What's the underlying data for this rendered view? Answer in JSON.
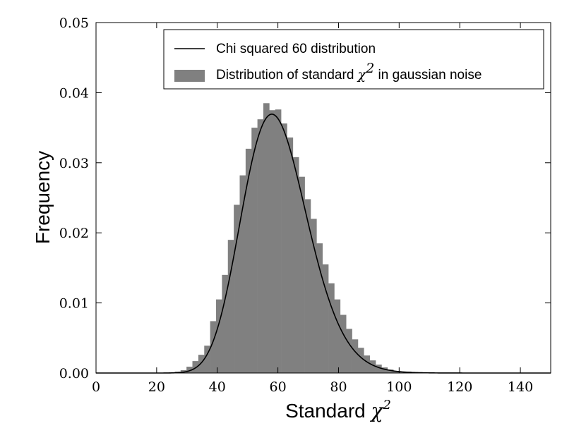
{
  "chart_data": {
    "type": "bar",
    "xlabel": "Standard",
    "xlabel_math": "χ",
    "xlabel_sup": "2",
    "ylabel": "Frequency",
    "xlim": [
      0,
      150
    ],
    "ylim": [
      0,
      0.05
    ],
    "x_ticks": [
      0,
      20,
      40,
      60,
      80,
      100,
      120,
      140
    ],
    "y_ticks": [
      0.0,
      0.01,
      0.02,
      0.03,
      0.04,
      0.05
    ],
    "x_tick_labels": [
      "0",
      "20",
      "40",
      "60",
      "80",
      "100",
      "120",
      "140"
    ],
    "y_tick_labels": [
      "0.00",
      "0.01",
      "0.02",
      "0.03",
      "0.04",
      "0.05"
    ],
    "grid": false,
    "legend_placement": "top-right",
    "series": [
      {
        "name": "Distribution of standard χ2 in gaussian noise",
        "type": "histogram",
        "color": "#808080",
        "bin_width": 1.95,
        "bins_start": [
          24.0,
          25.95,
          27.9,
          29.85,
          31.8,
          33.75,
          35.7,
          37.65,
          39.6,
          41.55,
          43.5,
          45.45,
          47.4,
          49.35,
          51.3,
          53.25,
          55.2,
          57.15,
          59.1,
          61.05,
          63.0,
          64.95,
          66.9,
          68.85,
          70.8,
          72.75,
          74.7,
          76.65,
          78.6,
          80.55,
          82.5,
          84.45,
          86.4,
          88.35,
          90.3,
          92.25,
          94.2,
          96.15,
          98.1,
          100.05,
          102.0,
          103.95,
          105.9,
          107.85,
          109.8,
          111.75,
          113.7
        ],
        "values": [
          0.0001,
          0.0002,
          0.0004,
          0.0009,
          0.0017,
          0.0026,
          0.0039,
          0.0074,
          0.0105,
          0.014,
          0.019,
          0.024,
          0.0282,
          0.032,
          0.035,
          0.0362,
          0.0385,
          0.0375,
          0.0376,
          0.0356,
          0.0336,
          0.0308,
          0.028,
          0.0248,
          0.022,
          0.0185,
          0.0155,
          0.0128,
          0.0105,
          0.0083,
          0.0063,
          0.0048,
          0.0036,
          0.0025,
          0.0018,
          0.0012,
          0.0008,
          0.0005,
          0.0003,
          0.0002,
          0.0002,
          0.0001,
          0.0001,
          0.0001,
          5e-05,
          5e-05,
          3e-05
        ]
      },
      {
        "name": "Chi squared 60 distribution",
        "type": "line",
        "color": "#000000",
        "degrees_of_freedom": 60
      }
    ]
  },
  "legend": {
    "line_label": "Chi squared 60 distribution",
    "hist_label_prefix": "Distribution of standard ",
    "hist_label_math": "χ",
    "hist_label_sup": "2",
    "hist_label_suffix": " in gaussian noise"
  }
}
